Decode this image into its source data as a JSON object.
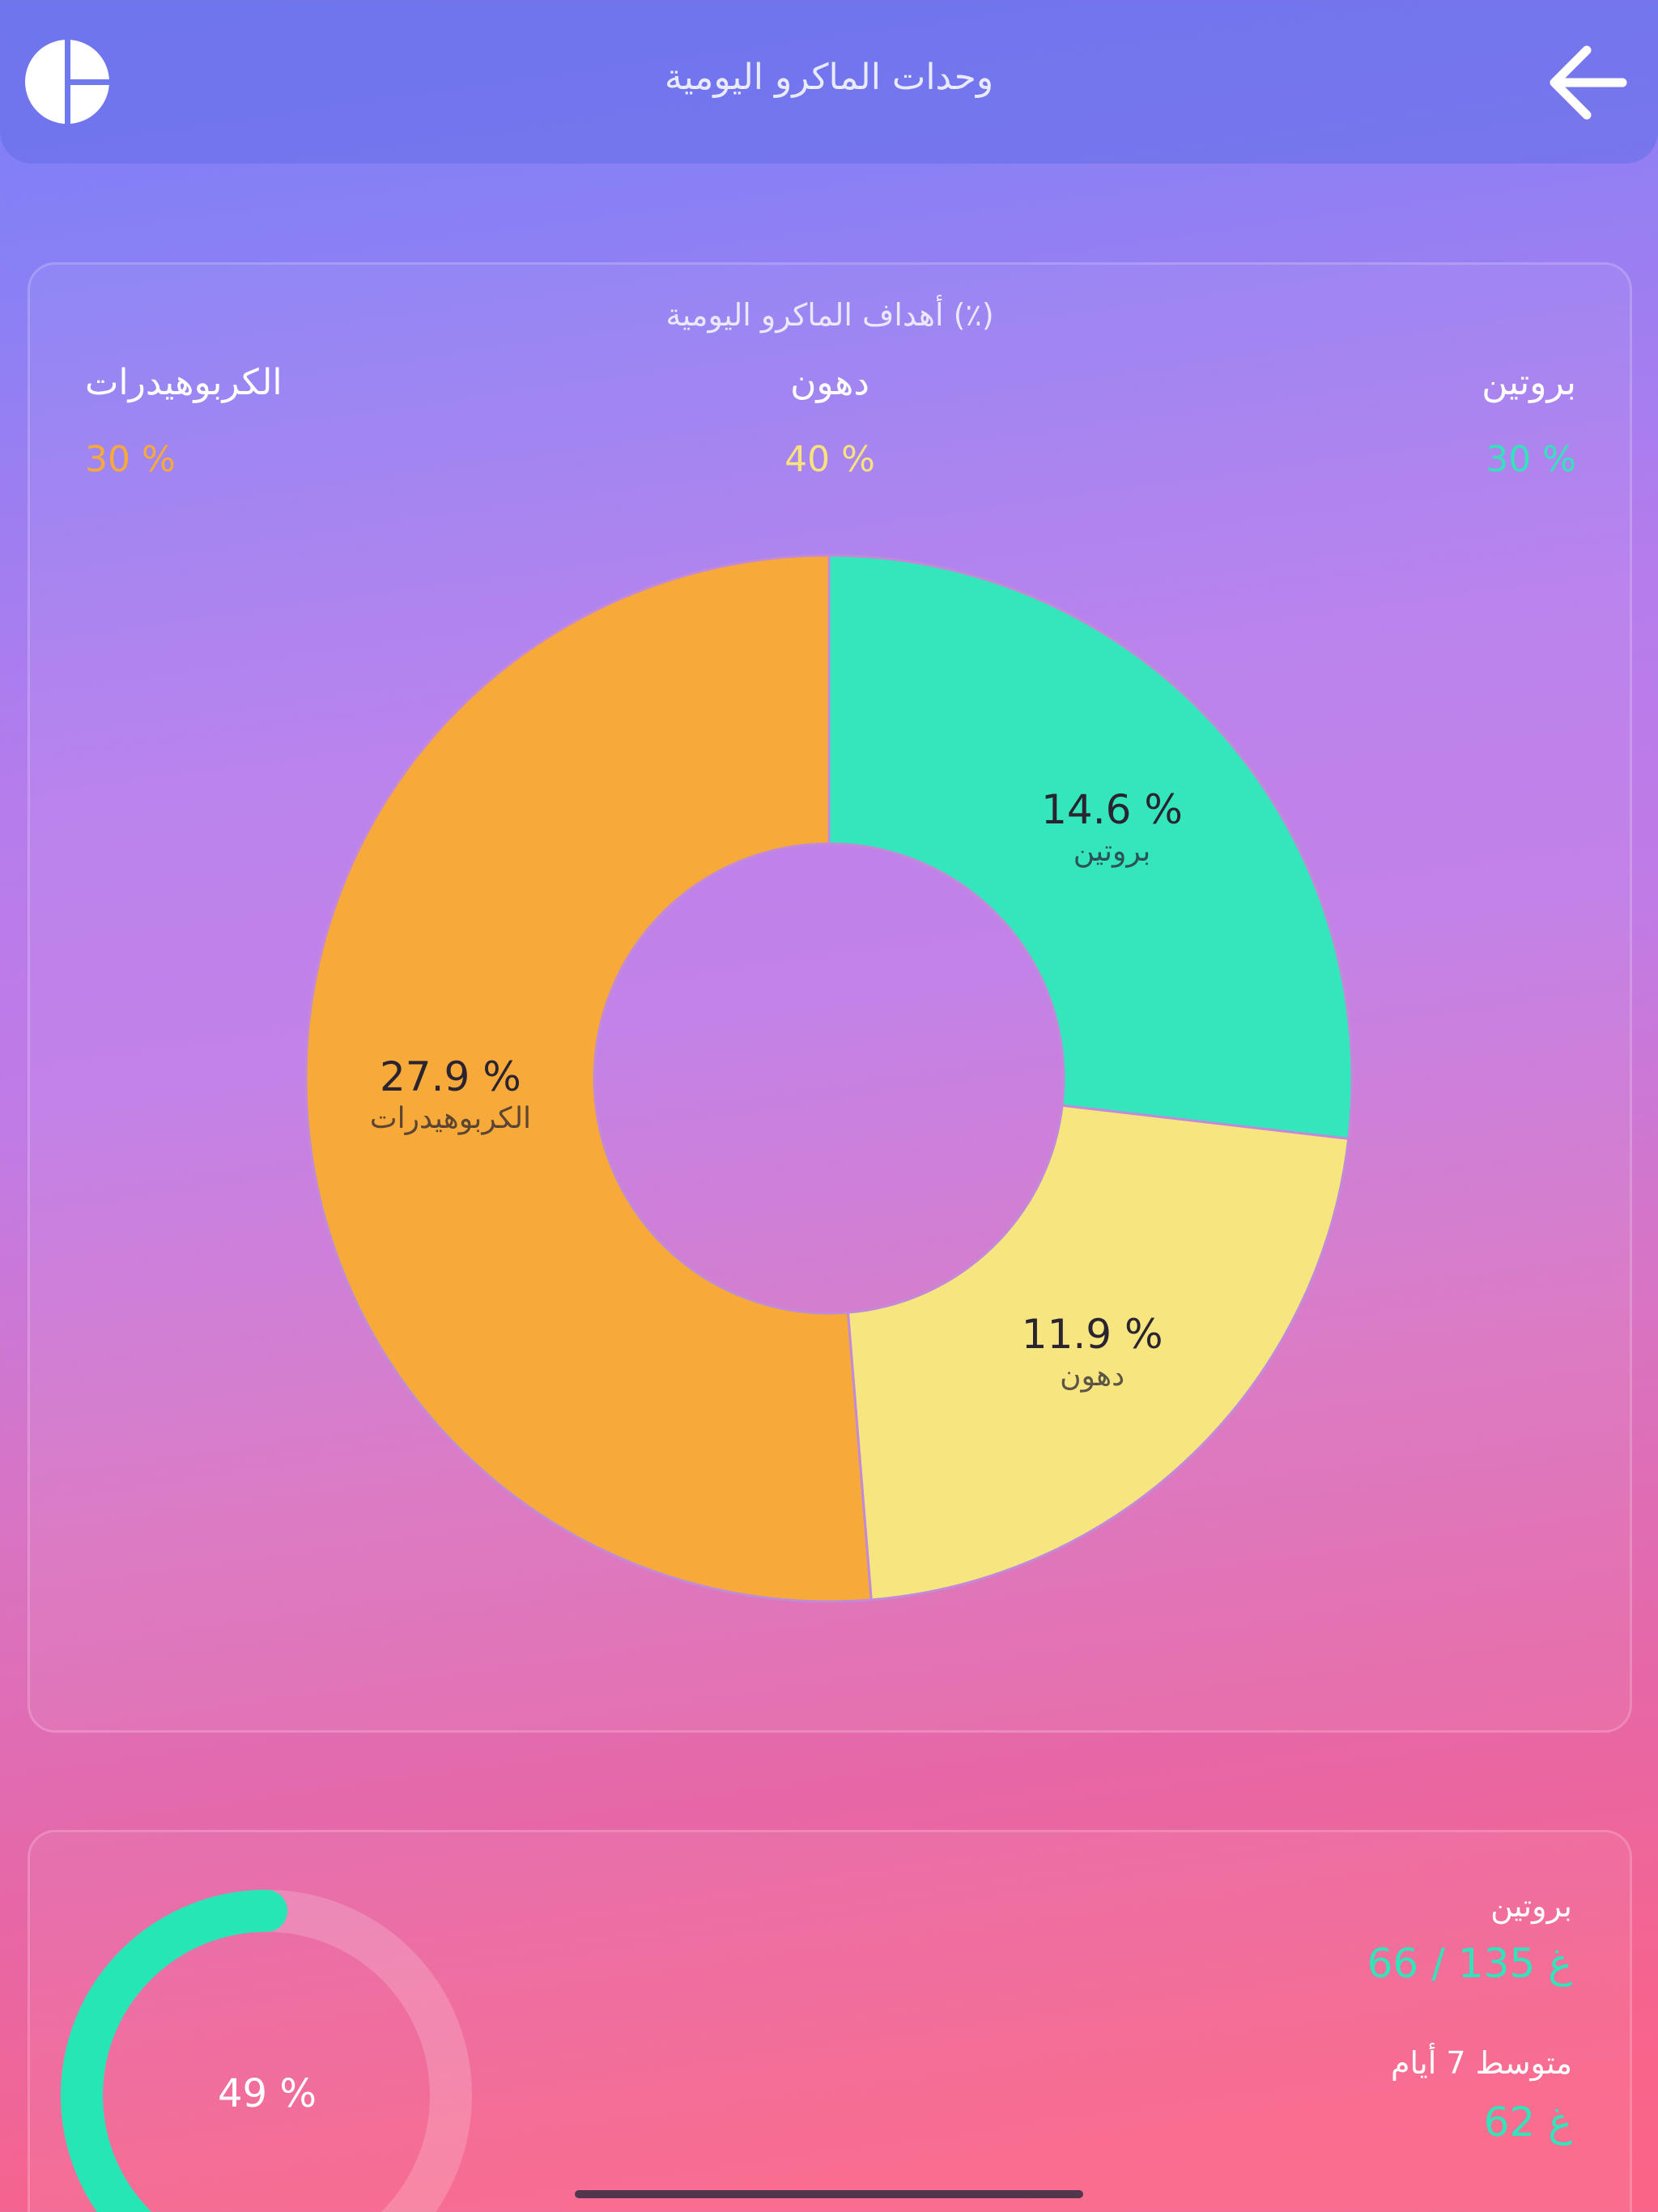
{
  "header": {
    "title": "وحدات الماكرو اليومية"
  },
  "goals_card": {
    "title": "أهداف الماكرو اليومية (٪)",
    "goals": [
      {
        "name": "بروتين",
        "value": "30 %",
        "color": "#34e2bc"
      },
      {
        "name": "دهون",
        "value": "40 %",
        "color": "#f7e27d"
      },
      {
        "name": "الكربوهيدرات",
        "value": "30 %",
        "color": "#f7a93b"
      }
    ]
  },
  "chart_data": {
    "type": "pie",
    "categories": [
      "بروتين",
      "دهون",
      "الكربوهيدرات"
    ],
    "values": [
      14.6,
      11.9,
      27.9
    ],
    "labels": [
      "14.6 %",
      "11.9 %",
      "27.9 %"
    ],
    "colors": [
      "#34e6bc",
      "#f7e580",
      "#f7aa3a"
    ]
  },
  "summary": {
    "progress_percent": 49,
    "progress_label": "49 %",
    "protein_label": "بروتين",
    "protein_value": "66 / 135 غ",
    "avg_label": "متوسط 7 أيام",
    "avg_value": "62 غ",
    "ring_color": "#26e6b5"
  }
}
